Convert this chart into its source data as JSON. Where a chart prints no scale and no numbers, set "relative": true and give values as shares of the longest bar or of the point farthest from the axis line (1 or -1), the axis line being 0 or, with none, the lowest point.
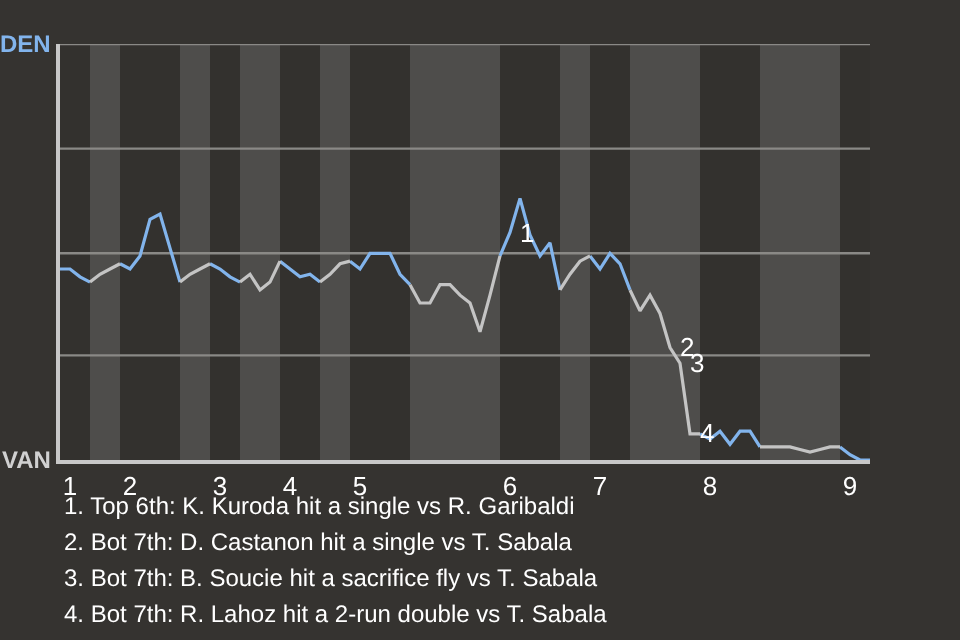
{
  "chart_data": {
    "type": "line",
    "relative": true,
    "categories": [
      null,
      "1",
      null,
      null,
      null,
      null,
      null,
      "2",
      null,
      null,
      null,
      null,
      null,
      null,
      null,
      null,
      "3",
      null,
      null,
      null,
      null,
      null,
      null,
      "4",
      null,
      null,
      null,
      null,
      null,
      null,
      "5",
      null,
      null,
      null,
      null,
      null,
      null,
      null,
      null,
      null,
      null,
      null,
      null,
      null,
      null,
      "6",
      null,
      null,
      null,
      null,
      null,
      null,
      null,
      null,
      "7",
      null,
      null,
      null,
      null,
      null,
      null,
      null,
      null,
      null,
      null,
      "8",
      null,
      null,
      null,
      null,
      null,
      null,
      null,
      null,
      null,
      null,
      null,
      null,
      null,
      "9",
      null,
      null
    ],
    "marker": "none",
    "line_style": "solid",
    "series": [
      {
        "color": "#82b4ec",
        "values": [
          0.73,
          0.73,
          0.7,
          0.68,
          null,
          null,
          0.75,
          0.73,
          0.78,
          0.92,
          0.94,
          0.81,
          0.68,
          null,
          null,
          0.75,
          0.73,
          0.7,
          0.68,
          null,
          null,
          null,
          0.76,
          0.73,
          0.7,
          0.71,
          0.68,
          null,
          null,
          0.76,
          0.73,
          0.79,
          0.79,
          0.79,
          0.71,
          0.67,
          null,
          null,
          null,
          null,
          null,
          null,
          null,
          null,
          0.78,
          0.87,
          1,
          0.86,
          0.78,
          0.83,
          0.65,
          null,
          null,
          0.78,
          0.73,
          0.79,
          0.75,
          0.65,
          null,
          null,
          null,
          null,
          null,
          null,
          0.1,
          0.08,
          0.11,
          0.06,
          0.11,
          0.11,
          0.05,
          null,
          null,
          null,
          null,
          null,
          null,
          null,
          0.05,
          0.02,
          0,
          0
        ]
      },
      {
        "color": "#c4c4c4",
        "values": [
          null,
          null,
          null,
          0.68,
          0.71,
          0.73,
          0.75,
          null,
          null,
          null,
          null,
          null,
          0.68,
          0.71,
          0.73,
          0.75,
          null,
          null,
          0.68,
          0.71,
          0.65,
          0.68,
          0.76,
          null,
          null,
          null,
          0.68,
          0.71,
          0.75,
          0.76,
          null,
          null,
          null,
          null,
          null,
          0.67,
          0.6,
          0.6,
          0.67,
          0.67,
          0.63,
          0.6,
          0.49,
          0.63,
          0.78,
          null,
          null,
          null,
          null,
          null,
          0.65,
          0.71,
          0.76,
          0.78,
          null,
          null,
          null,
          0.65,
          0.57,
          0.63,
          0.56,
          0.43,
          0.37,
          0.1,
          0.1,
          null,
          null,
          null,
          null,
          null,
          0.05,
          0.05,
          0.05,
          0.05,
          0.04,
          0.03,
          0.04,
          0.05,
          0.05,
          null,
          null,
          null
        ]
      }
    ],
    "ref_lines": [
      {
        "axis": "y",
        "value": 0.4,
        "color": "#8a8986"
      },
      {
        "axis": "y",
        "value": 0.79,
        "color": "#8a8986"
      },
      {
        "axis": "y",
        "value": 1.19,
        "color": "#8a8986"
      },
      {
        "axis": "y",
        "value": 1.59,
        "color": "#8a8986"
      }
    ],
    "annotations": [
      "DEN",
      "VAN",
      {
        "text": "1",
        "y": 0.87
      },
      {
        "text": "2",
        "y": 0.43
      },
      {
        "text": "3",
        "y": 0.37
      },
      {
        "text": "4",
        "y": 0.1
      },
      "1. Top 6th: K. Kuroda hit a single vs R. Garibaldi",
      "2. Bot 7th: D. Castanon hit a single vs T. Sabala",
      "3. Bot 7th: B. Soucie hit a sacrifice fly vs T. Sabala",
      "4. Bot 7th: R. Lahoz hit a 2-run double vs T. Sabala"
    ]
  }
}
